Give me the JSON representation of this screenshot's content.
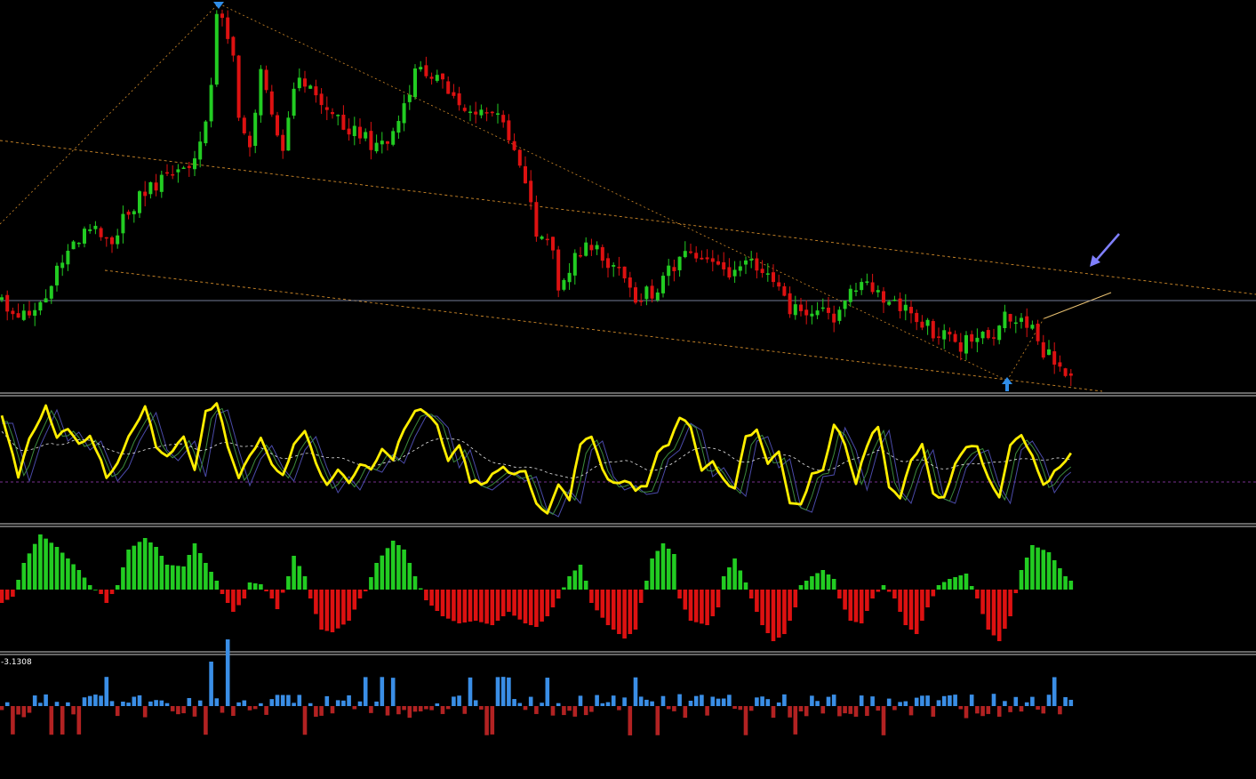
{
  "chart_data": {
    "type": "candlestick",
    "panels": [
      {
        "id": "price",
        "indicators": [
          "candlesticks",
          "zigzag",
          "trend-channel",
          "horizontal-level",
          "arrow-signals"
        ]
      },
      {
        "id": "oscillator",
        "indicators": [
          "yellow-oscillator",
          "signal-lines",
          "dashed-moving-average"
        ]
      },
      {
        "id": "momentum-histogram",
        "indicators": [
          "green-red-histogram"
        ]
      },
      {
        "id": "volume-delta-histogram",
        "indicators": [
          "blue-red-histogram"
        ]
      }
    ],
    "histogram2_label": "-3.1308",
    "candle_count": 195,
    "grid": false,
    "colors": {
      "background": "#000000",
      "bull_candle": "#22cc22",
      "bear_candle": "#dd1111",
      "oscillator_line": "#ffee00",
      "histogram_positive": "#22cc22",
      "histogram_negative": "#dd1111",
      "histogram2_positive": "#3a8ee6",
      "histogram2_negative": "#b22222",
      "trendline": "#d08a2a",
      "horizontal_level": "#9aa6c8",
      "arrow": "#8080ff",
      "signal_arrow": "#2f8de8",
      "separator": "#cccccc"
    }
  }
}
